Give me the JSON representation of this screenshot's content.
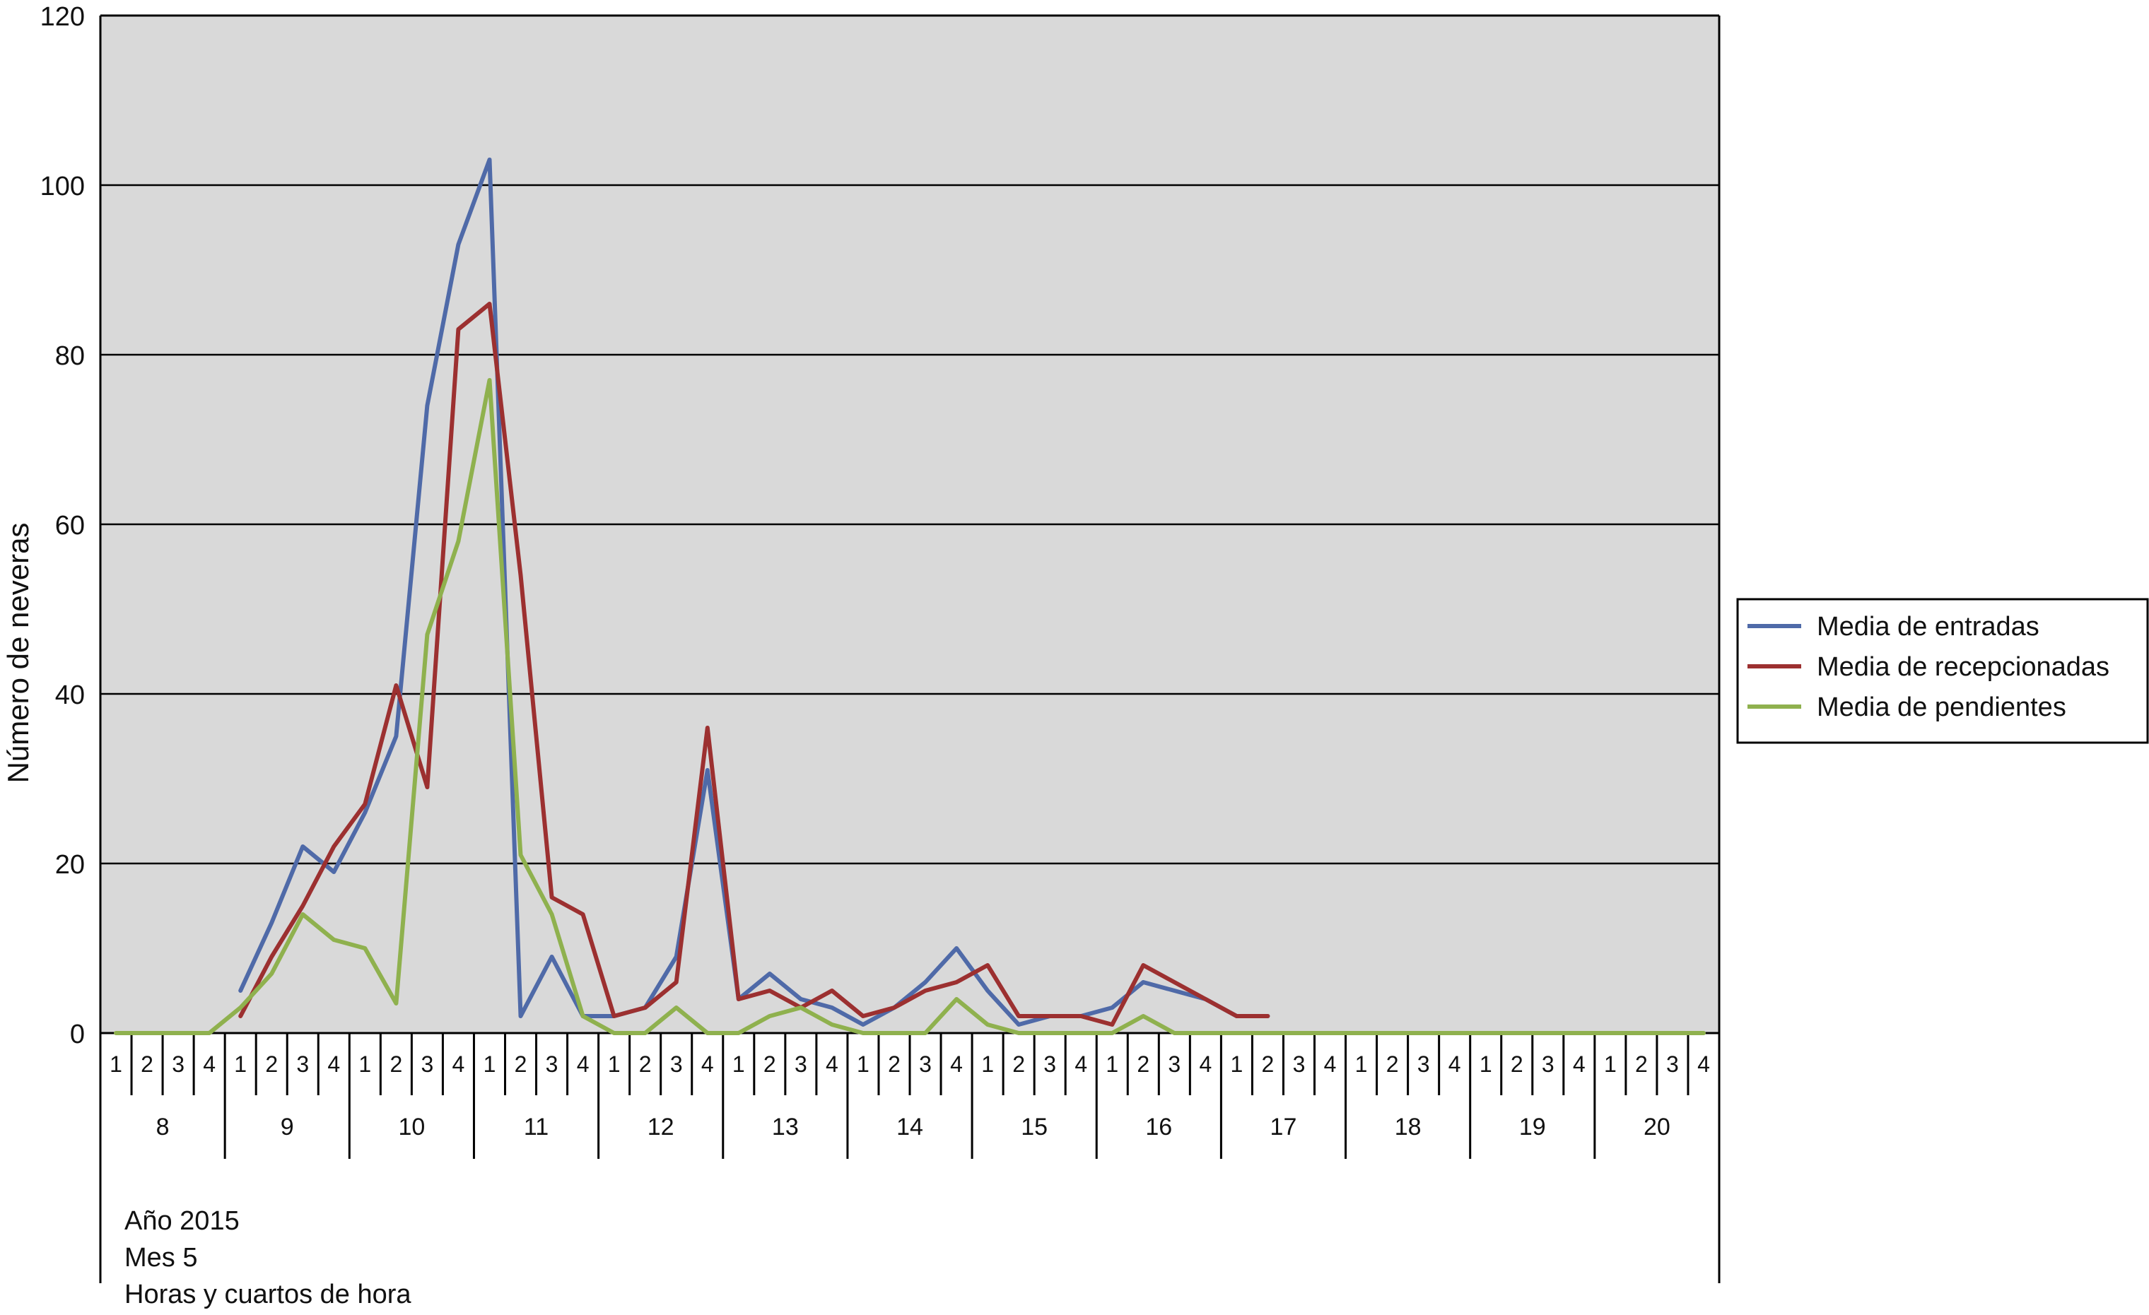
{
  "chart_data": {
    "type": "line",
    "ylabel": "Número de neveras",
    "ylim": [
      0,
      120
    ],
    "yticks": [
      "0",
      "20",
      "40",
      "60",
      "80",
      "100",
      "120"
    ],
    "grid": true,
    "plot_background": "#d9d9d9",
    "legend_position": "right",
    "hours": [
      "8",
      "9",
      "10",
      "11",
      "12",
      "13",
      "14",
      "15",
      "16",
      "17",
      "18",
      "19",
      "20"
    ],
    "quarters": [
      "1",
      "2",
      "3",
      "4"
    ],
    "axis_notes": [
      "Año 2015",
      "Mes 5",
      "Horas y cuartos de hora"
    ],
    "series": [
      {
        "name": "Media de entradas",
        "color": "#4f6aa8",
        "values": [
          null,
          null,
          null,
          null,
          5,
          13,
          22,
          19,
          26,
          35,
          74,
          93,
          103,
          2,
          9,
          2,
          2,
          3,
          9,
          31,
          4,
          7,
          4,
          3,
          1,
          3,
          6,
          10,
          5,
          1,
          2,
          2,
          3,
          6,
          5,
          4,
          2,
          2,
          null,
          null,
          null,
          null,
          null,
          null,
          null,
          null,
          null,
          null,
          null,
          null,
          null,
          null
        ]
      },
      {
        "name": "Media de recepcionadas",
        "color": "#9c3030",
        "values": [
          null,
          null,
          null,
          null,
          2,
          9,
          15,
          22,
          27,
          41,
          29,
          83,
          86,
          54,
          16,
          14,
          2,
          3,
          6,
          36,
          4,
          5,
          3,
          5,
          2,
          3,
          5,
          6,
          8,
          2,
          2,
          2,
          1,
          8,
          6,
          4,
          2,
          2,
          null,
          null,
          null,
          null,
          null,
          null,
          null,
          null,
          null,
          null,
          null,
          null,
          null,
          null
        ]
      },
      {
        "name": "Media de pendientes",
        "color": "#8fb14e",
        "values": [
          0,
          0,
          0,
          0,
          3,
          7,
          14,
          11,
          10,
          3.5,
          47,
          58,
          77,
          21,
          14,
          2,
          0,
          0,
          3,
          0,
          0,
          2,
          3,
          1,
          0,
          0,
          0,
          4,
          1,
          0,
          0,
          0,
          0,
          2,
          0,
          0,
          0,
          0,
          0,
          0,
          0,
          0,
          0,
          0,
          0,
          0,
          0,
          0,
          0,
          0,
          0,
          0
        ]
      }
    ]
  }
}
